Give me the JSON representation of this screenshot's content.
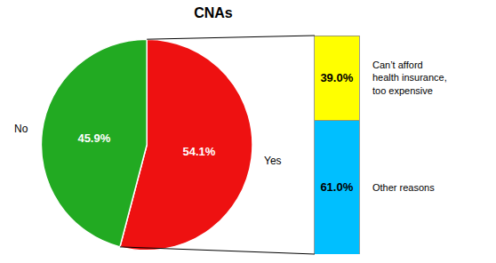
{
  "chart_data": [
    {
      "type": "pie",
      "title": "CNAs",
      "categories": [
        "Yes",
        "No"
      ],
      "values": [
        54.1,
        45.9
      ],
      "value_labels": [
        "54.1%",
        "45.9%"
      ],
      "colors": [
        "#ee1111",
        "#22aa22"
      ],
      "data_labels": true
    },
    {
      "type": "bar",
      "stacked": true,
      "categories": [
        null
      ],
      "series": [
        {
          "name": "Can’t afford\nhealth insurance,\ntoo expensive",
          "color": "#ffff00",
          "values": [
            39.0
          ],
          "value_labels": [
            "39.0%"
          ]
        },
        {
          "name": "Other reasons",
          "color": "#00bfff",
          "values": [
            61.0
          ],
          "value_labels": [
            "61.0%"
          ]
        }
      ],
      "ylim": [
        0,
        100
      ],
      "tick_labels": false,
      "data_labels": true
    }
  ]
}
